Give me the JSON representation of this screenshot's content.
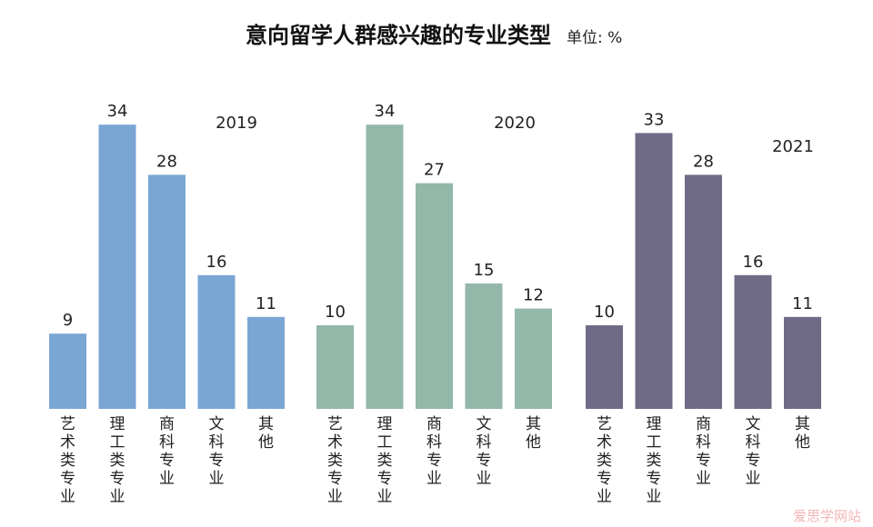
{
  "title": "意向留学人群感兴趣的专业类型",
  "unit": "单位: %",
  "watermark": "爱思学网站",
  "chart_data": [
    {
      "type": "bar",
      "label": "2019",
      "color": "#7aa6d4",
      "categories": [
        "艺术类专业",
        "理工类专业",
        "商科专业",
        "文科专业",
        "其他"
      ],
      "values": [
        9,
        34,
        28,
        16,
        11
      ]
    },
    {
      "type": "bar",
      "label": "2020",
      "color": "#93b7a9",
      "categories": [
        "艺术类专业",
        "理工类专业",
        "商科专业",
        "文科专业",
        "其他"
      ],
      "values": [
        10,
        34,
        27,
        15,
        12
      ]
    },
    {
      "type": "bar",
      "label": "2021",
      "color": "#6f6b86",
      "categories": [
        "艺术类专业",
        "理工类专业",
        "商科专业",
        "文科专业",
        "其他"
      ],
      "values": [
        10,
        33,
        28,
        16,
        11
      ]
    }
  ]
}
